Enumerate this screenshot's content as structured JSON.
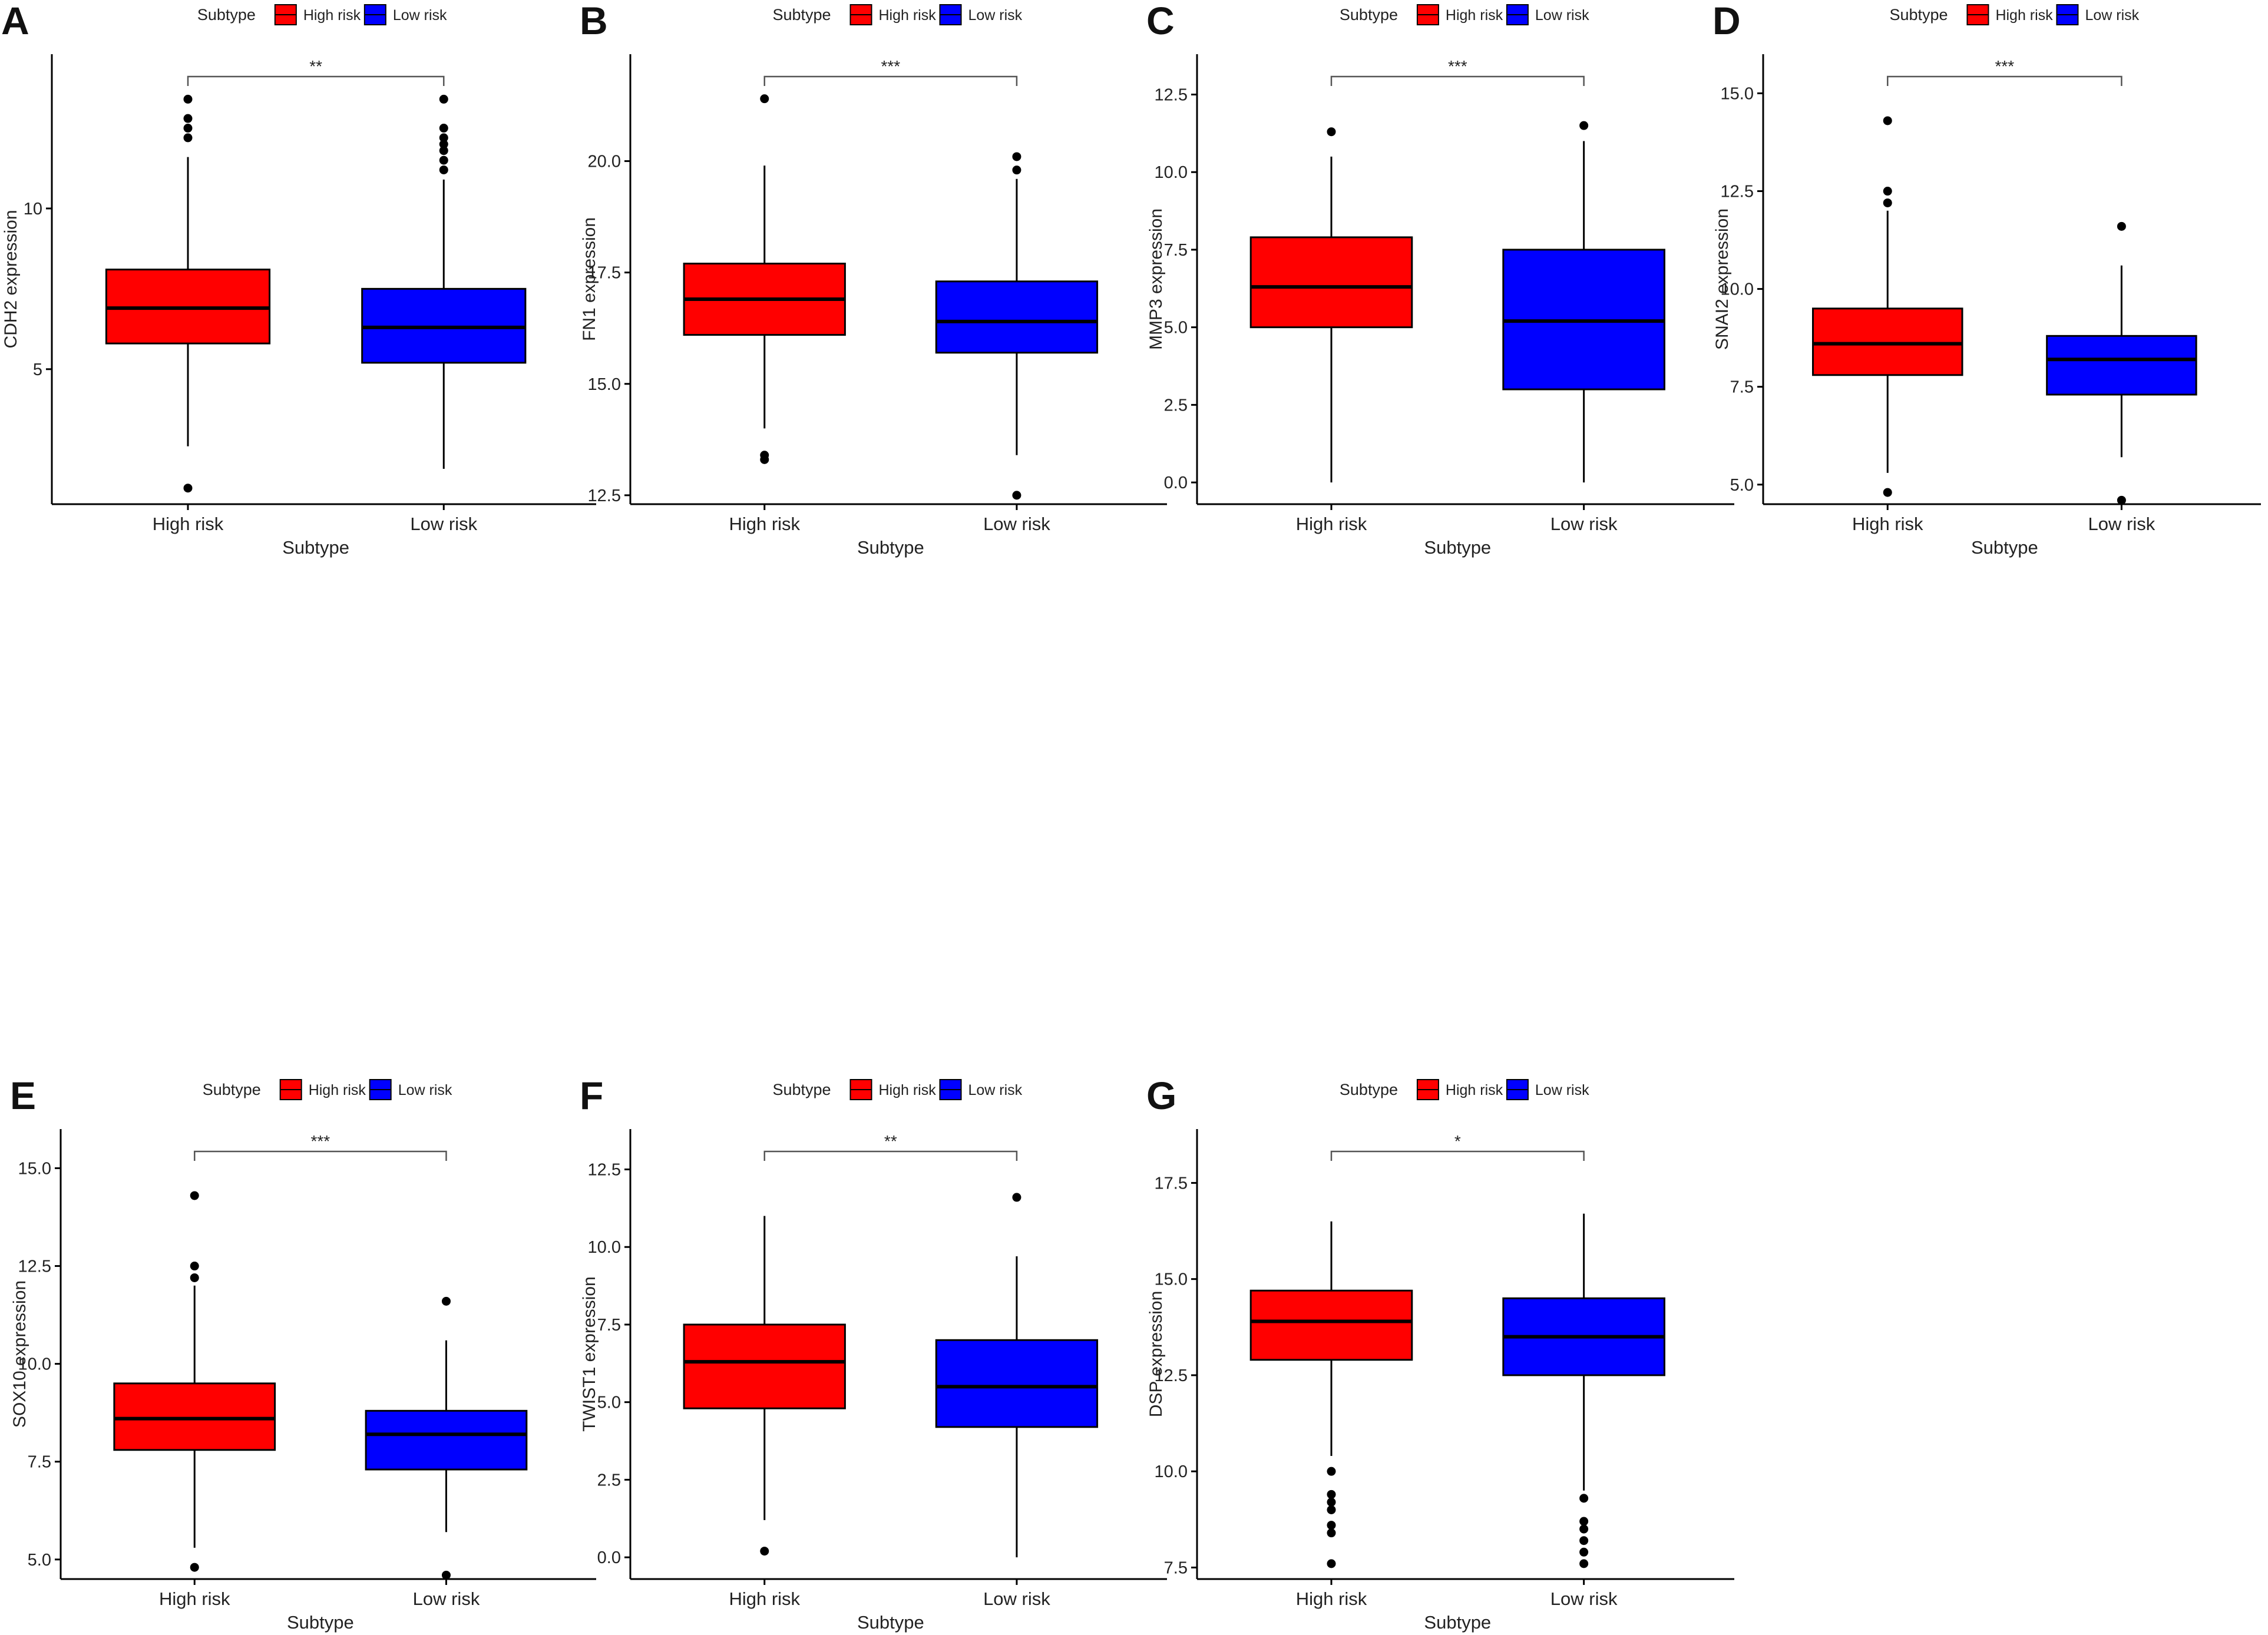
{
  "figure": {
    "background": "#ffffff"
  },
  "legend": {
    "title": "Subtype",
    "items": [
      {
        "label": "High risk",
        "color": "#ff0000"
      },
      {
        "label": "Low risk",
        "color": "#0000ff"
      }
    ]
  },
  "chart_data": [
    {
      "panel": "A",
      "type": "box",
      "gene": "CDH2",
      "ylabel": "CDH2 expression",
      "xlabel": "Subtype",
      "categories": [
        "High risk",
        "Low risk"
      ],
      "ylim": [
        0.8,
        14.8
      ],
      "yticks": [
        5,
        10
      ],
      "significance": "**",
      "series": [
        {
          "name": "High risk",
          "color": "#ff0000",
          "q1": 5.8,
          "median": 6.9,
          "q3": 8.1,
          "whisker_low": 2.6,
          "whisker_high": 11.6,
          "outliers": [
            1.3,
            12.2,
            12.5,
            12.8,
            13.4
          ]
        },
        {
          "name": "Low risk",
          "color": "#0000ff",
          "q1": 5.2,
          "median": 6.3,
          "q3": 7.5,
          "whisker_low": 1.9,
          "whisker_high": 10.9,
          "outliers": [
            11.2,
            11.5,
            11.8,
            12.0,
            12.2,
            12.5,
            13.4
          ]
        }
      ]
    },
    {
      "panel": "B",
      "type": "box",
      "gene": "FN1",
      "ylabel": "FN1 expression",
      "xlabel": "Subtype",
      "categories": [
        "High risk",
        "Low risk"
      ],
      "ylim": [
        12.3,
        22.4
      ],
      "yticks": [
        12.5,
        15.0,
        17.5,
        20.0
      ],
      "significance": "***",
      "series": [
        {
          "name": "High risk",
          "color": "#ff0000",
          "q1": 16.1,
          "median": 16.9,
          "q3": 17.7,
          "whisker_low": 14.0,
          "whisker_high": 19.9,
          "outliers": [
            13.3,
            13.4,
            21.4
          ]
        },
        {
          "name": "Low risk",
          "color": "#0000ff",
          "q1": 15.7,
          "median": 16.4,
          "q3": 17.3,
          "whisker_low": 13.4,
          "whisker_high": 19.6,
          "outliers": [
            12.5,
            19.8,
            20.1
          ]
        }
      ]
    },
    {
      "panel": "C",
      "type": "box",
      "gene": "MMP3",
      "ylabel": "MMP3 expression",
      "xlabel": "Subtype",
      "categories": [
        "High risk",
        "Low risk"
      ],
      "ylim": [
        -0.7,
        13.8
      ],
      "yticks": [
        0.0,
        2.5,
        5.0,
        7.5,
        10.0,
        12.5
      ],
      "significance": "***",
      "series": [
        {
          "name": "High risk",
          "color": "#ff0000",
          "q1": 5.0,
          "median": 6.3,
          "q3": 7.9,
          "whisker_low": 0.0,
          "whisker_high": 10.5,
          "outliers": [
            11.3
          ]
        },
        {
          "name": "Low risk",
          "color": "#0000ff",
          "q1": 3.0,
          "median": 5.2,
          "q3": 7.5,
          "whisker_low": 0.0,
          "whisker_high": 11.0,
          "outliers": [
            11.5
          ]
        }
      ]
    },
    {
      "panel": "D",
      "type": "box",
      "gene": "SNAI2",
      "ylabel": "SNAI2 expression",
      "xlabel": "Subtype",
      "categories": [
        "High risk",
        "Low risk"
      ],
      "ylim": [
        4.5,
        16.0
      ],
      "yticks": [
        5.0,
        7.5,
        10.0,
        12.5,
        15.0
      ],
      "significance": "***",
      "series": [
        {
          "name": "High risk",
          "color": "#ff0000",
          "q1": 7.8,
          "median": 8.6,
          "q3": 9.5,
          "whisker_low": 5.3,
          "whisker_high": 12.0,
          "outliers": [
            4.8,
            12.2,
            12.5,
            14.3
          ]
        },
        {
          "name": "Low risk",
          "color": "#0000ff",
          "q1": 7.3,
          "median": 8.2,
          "q3": 8.8,
          "whisker_low": 5.7,
          "whisker_high": 10.6,
          "outliers": [
            4.6,
            11.6
          ]
        }
      ]
    },
    {
      "panel": "E",
      "type": "box",
      "gene": "SOX10",
      "ylabel": "SOX10 expression",
      "xlabel": "Subtype",
      "categories": [
        "High risk",
        "Low risk"
      ],
      "ylim": [
        4.5,
        16.0
      ],
      "yticks": [
        5.0,
        7.5,
        10.0,
        12.5,
        15.0
      ],
      "significance": "***",
      "series": [
        {
          "name": "High risk",
          "color": "#ff0000",
          "q1": 7.8,
          "median": 8.6,
          "q3": 9.5,
          "whisker_low": 5.3,
          "whisker_high": 12.0,
          "outliers": [
            4.8,
            12.2,
            12.5,
            14.3
          ]
        },
        {
          "name": "Low risk",
          "color": "#0000ff",
          "q1": 7.3,
          "median": 8.2,
          "q3": 8.8,
          "whisker_low": 5.7,
          "whisker_high": 10.6,
          "outliers": [
            4.6,
            11.6
          ]
        }
      ]
    },
    {
      "panel": "F",
      "type": "box",
      "gene": "TWIST1",
      "ylabel": "TWIST1 expression",
      "xlabel": "Subtype",
      "categories": [
        "High risk",
        "Low risk"
      ],
      "ylim": [
        -0.7,
        13.8
      ],
      "yticks": [
        0.0,
        2.5,
        5.0,
        7.5,
        10.0,
        12.5
      ],
      "significance": "**",
      "series": [
        {
          "name": "High risk",
          "color": "#ff0000",
          "q1": 4.8,
          "median": 6.3,
          "q3": 7.5,
          "whisker_low": 1.2,
          "whisker_high": 11.0,
          "outliers": [
            0.2
          ]
        },
        {
          "name": "Low risk",
          "color": "#0000ff",
          "q1": 4.2,
          "median": 5.5,
          "q3": 7.0,
          "whisker_low": 0.0,
          "whisker_high": 9.7,
          "outliers": [
            11.6
          ]
        }
      ]
    },
    {
      "panel": "G",
      "type": "box",
      "gene": "DSP",
      "ylabel": "DSP expression",
      "xlabel": "Subtype",
      "categories": [
        "High risk",
        "Low risk"
      ],
      "ylim": [
        7.2,
        18.9
      ],
      "yticks": [
        7.5,
        10.0,
        12.5,
        15.0,
        17.5
      ],
      "significance": "*",
      "series": [
        {
          "name": "High risk",
          "color": "#ff0000",
          "q1": 12.9,
          "median": 13.9,
          "q3": 14.7,
          "whisker_low": 10.4,
          "whisker_high": 16.5,
          "outliers": [
            7.6,
            8.4,
            8.6,
            9.0,
            9.2,
            9.4,
            10.0
          ]
        },
        {
          "name": "Low risk",
          "color": "#0000ff",
          "q1": 12.5,
          "median": 13.5,
          "q3": 14.5,
          "whisker_low": 9.5,
          "whisker_high": 16.7,
          "outliers": [
            7.6,
            7.9,
            8.2,
            8.5,
            8.7,
            9.3
          ]
        }
      ]
    }
  ]
}
